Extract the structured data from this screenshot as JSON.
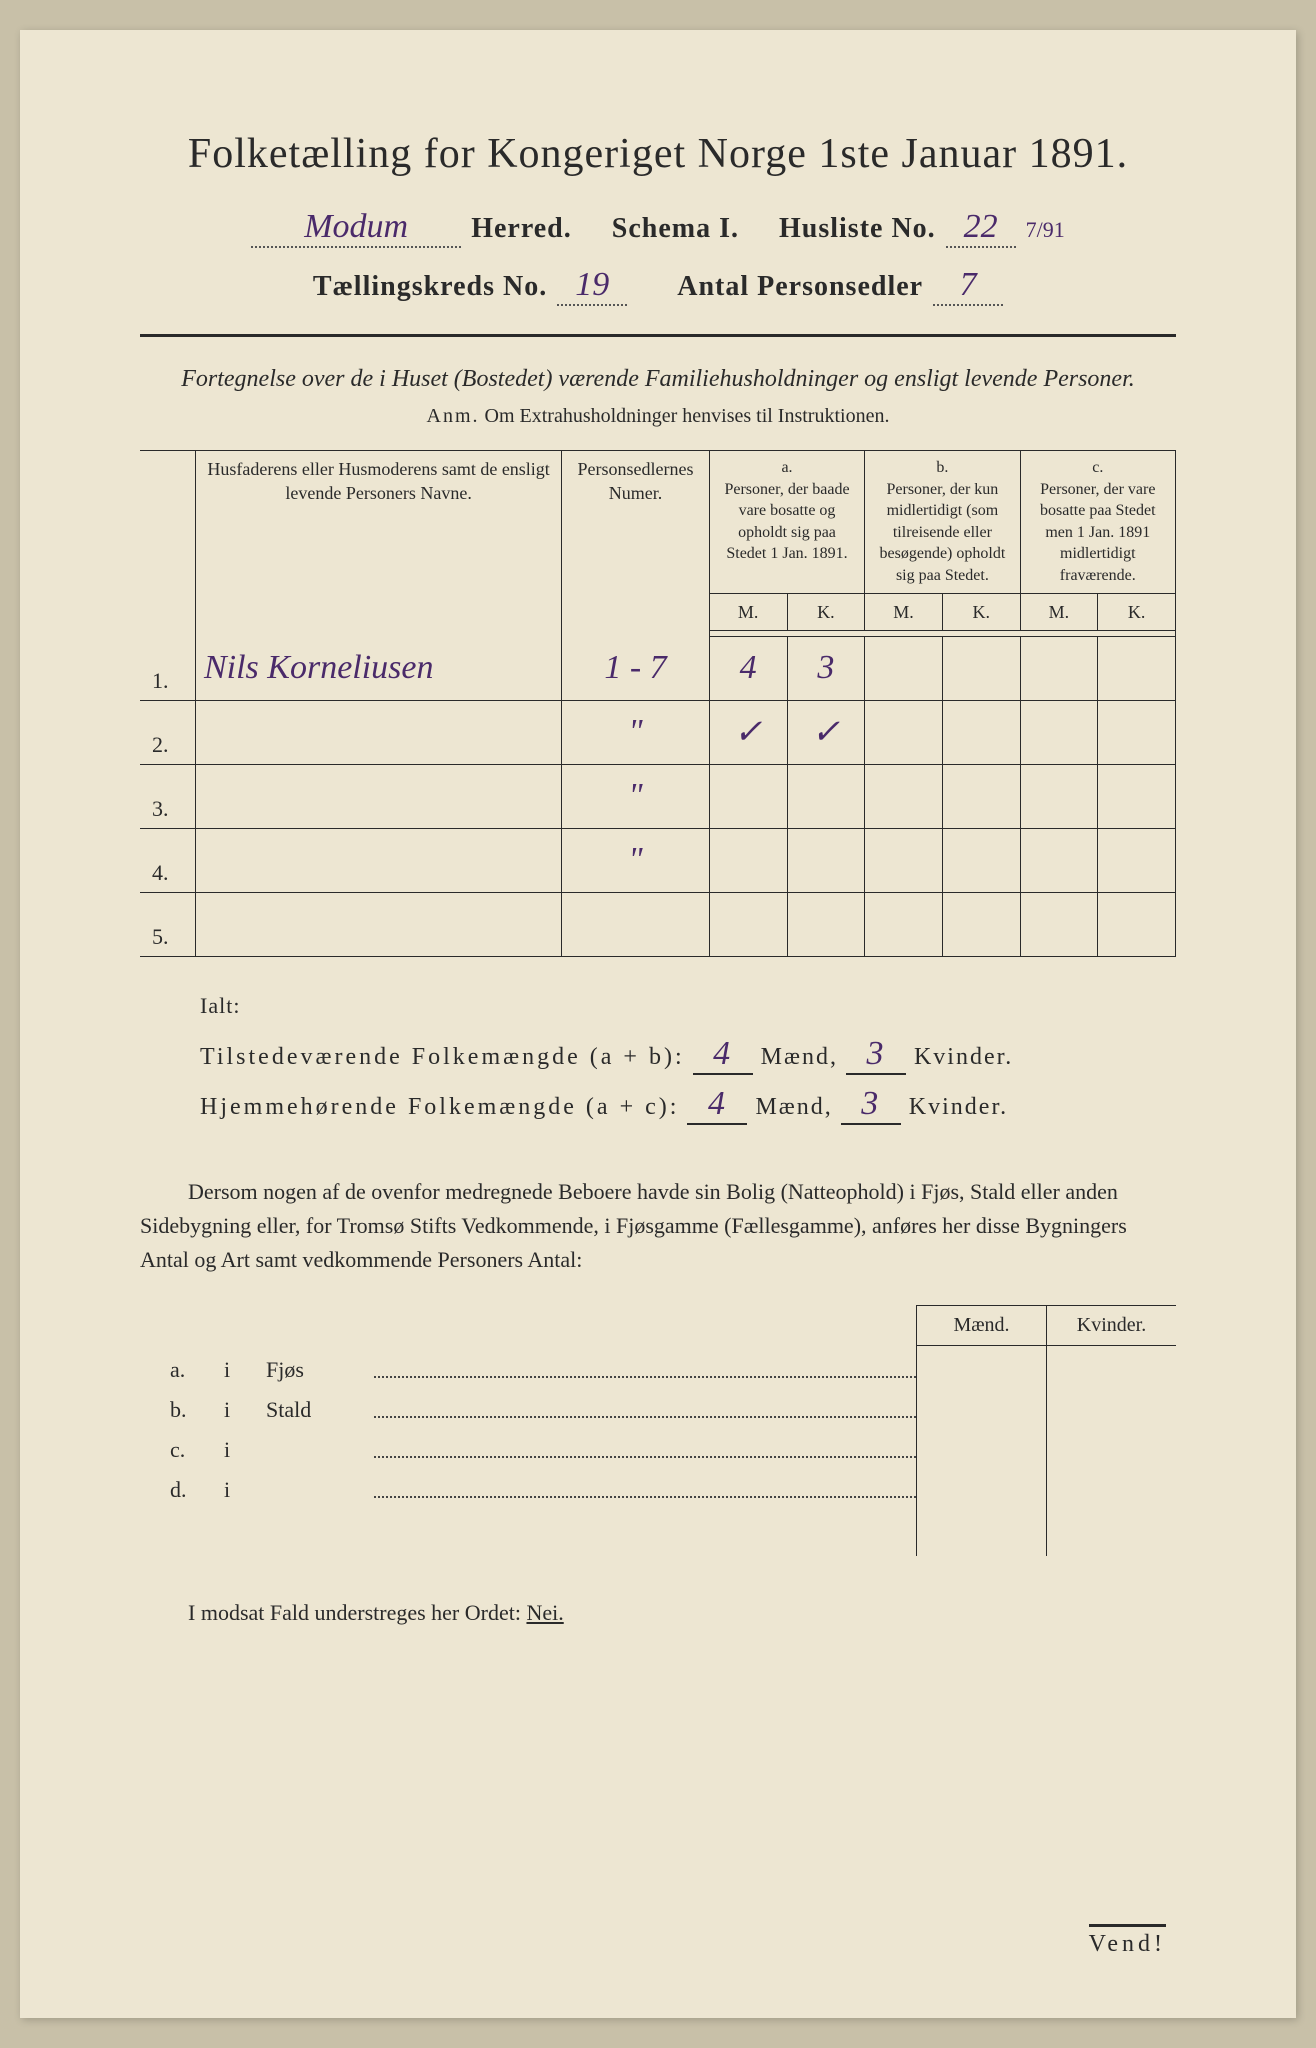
{
  "title": "Folketælling for Kongeriget Norge 1ste Januar 1891.",
  "header": {
    "herred_value": "Modum",
    "herred_label": "Herred.",
    "schema_label": "Schema I.",
    "husliste_label": "Husliste No.",
    "husliste_no": "22",
    "husliste_note": "7/91",
    "kreds_label": "Tællingskreds No.",
    "kreds_no": "19",
    "antal_label": "Antal Personsedler",
    "antal_value": "7"
  },
  "subtitle": "Fortegnelse over de i Huset (Bostedet) værende Familiehusholdninger og ensligt levende Personer.",
  "anm_label": "Anm.",
  "anm_text": "Om Extrahusholdninger henvises til Instruktionen.",
  "columns": {
    "name": "Husfaderens eller Husmoderens samt de ensligt levende Personers Navne.",
    "ps": "Personsedlernes Numer.",
    "a_label": "a.",
    "a_text": "Personer, der baade vare bosatte og opholdt sig paa Stedet 1 Jan. 1891.",
    "b_label": "b.",
    "b_text": "Personer, der kun midlertidigt (som tilreisende eller besøgende) opholdt sig paa Stedet.",
    "c_label": "c.",
    "c_text": "Personer, der vare bosatte paa Stedet men 1 Jan. 1891 midlertidigt fraværende.",
    "M": "M.",
    "K": "K."
  },
  "rows": [
    {
      "n": "1.",
      "name": "Nils Korneliusen",
      "ps": "1 - 7",
      "aM": "4",
      "aK": "3",
      "bM": "",
      "bK": "",
      "cM": "",
      "cK": ""
    },
    {
      "n": "2.",
      "name": "",
      "ps": "\"",
      "aM": "✓",
      "aK": "✓",
      "bM": "",
      "bK": "",
      "cM": "",
      "cK": ""
    },
    {
      "n": "3.",
      "name": "",
      "ps": "\"",
      "aM": "",
      "aK": "",
      "bM": "",
      "bK": "",
      "cM": "",
      "cK": ""
    },
    {
      "n": "4.",
      "name": "",
      "ps": "\"",
      "aM": "",
      "aK": "",
      "bM": "",
      "bK": "",
      "cM": "",
      "cK": ""
    },
    {
      "n": "5.",
      "name": "",
      "ps": "",
      "aM": "",
      "aK": "",
      "bM": "",
      "bK": "",
      "cM": "",
      "cK": ""
    }
  ],
  "totals": {
    "ialt": "Ialt:",
    "line1_label": "Tilstedeværende Folkemængde (a + b):",
    "line2_label": "Hjemmehørende Folkemængde (a + c):",
    "maend_lbl": "Mænd,",
    "kvinder_lbl": "Kvinder.",
    "t_m": "4",
    "t_k": "3",
    "h_m": "4",
    "h_k": "3"
  },
  "paragraph": "Dersom nogen af de ovenfor medregnede Beboere havde sin Bolig (Natteophold) i Fjøs, Stald eller anden Sidebygning eller, for Tromsø Stifts Vedkommende, i Fjøsgamme (Fællesgamme), anføres her disse Bygningers Antal og Art samt vedkommende Personers Antal:",
  "sub": {
    "maend": "Mænd.",
    "kvinder": "Kvinder.",
    "rows": [
      {
        "k": "a.",
        "i": "i",
        "type": "Fjøs"
      },
      {
        "k": "b.",
        "i": "i",
        "type": "Stald"
      },
      {
        "k": "c.",
        "i": "i",
        "type": ""
      },
      {
        "k": "d.",
        "i": "i",
        "type": ""
      }
    ]
  },
  "nei_line_pre": "I modsat Fald understreges her Ordet: ",
  "nei": "Nei.",
  "vend": "Vend!"
}
